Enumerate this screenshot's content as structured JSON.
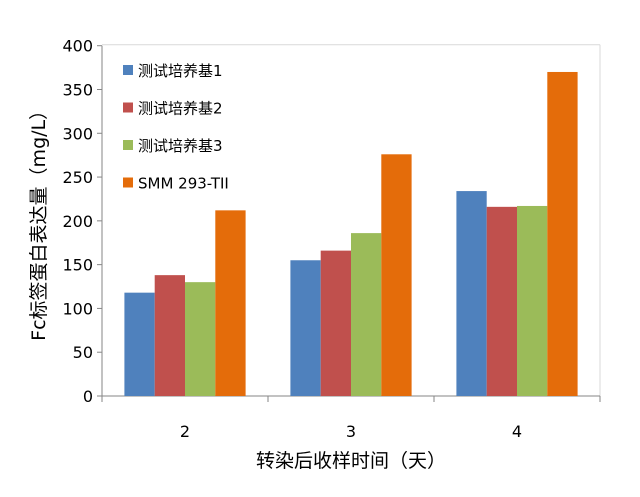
{
  "chart_data": {
    "type": "bar",
    "title": "",
    "xlabel": "转染后收样时间（天）",
    "ylabel": "Fc标签蛋白表达量（mg/L）",
    "categories": [
      "2",
      "3",
      "4"
    ],
    "ylim": [
      0,
      400
    ],
    "yticks": [
      0,
      50,
      100,
      150,
      200,
      250,
      300,
      350,
      400
    ],
    "grid": false,
    "legend_position": "top-left",
    "series": [
      {
        "name": "测试培养基1",
        "color": "#4F81BD",
        "values": [
          118,
          155,
          234
        ]
      },
      {
        "name": "测试培养基2",
        "color": "#C0504D",
        "values": [
          138,
          166,
          216
        ]
      },
      {
        "name": "测试培养基3",
        "color": "#9BBB59",
        "values": [
          130,
          186,
          217
        ]
      },
      {
        "name": "SMM 293-TII",
        "color": "#E46C0A",
        "values": [
          212,
          276,
          370
        ]
      }
    ]
  }
}
